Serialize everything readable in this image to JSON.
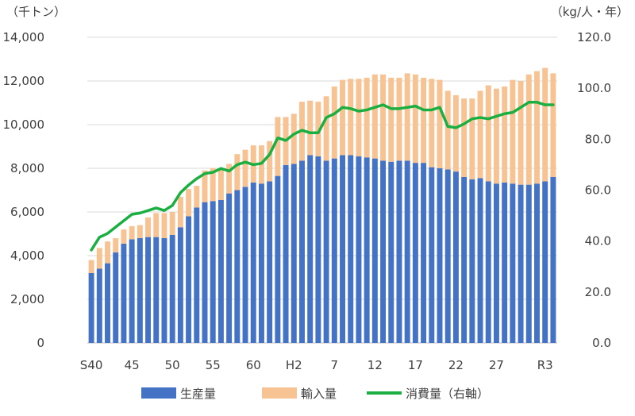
{
  "chart_data": {
    "type": "bar",
    "stacked": true,
    "title": "",
    "y_left": {
      "unit_label": "（千トン）",
      "range": [
        0,
        14000
      ],
      "ticks": [
        "0",
        "2,000",
        "4,000",
        "6,000",
        "8,000",
        "10,000",
        "12,000",
        "14,000"
      ]
    },
    "y_right": {
      "unit_label": "（kg/人・年）",
      "range": [
        0,
        120
      ],
      "ticks": [
        "0.0",
        "20.0",
        "40.0",
        "60.0",
        "80.0",
        "100.0",
        "120.0"
      ]
    },
    "x_tick_labels": [
      {
        "index": 0,
        "label": "S40"
      },
      {
        "index": 5,
        "label": "45"
      },
      {
        "index": 10,
        "label": "50"
      },
      {
        "index": 15,
        "label": "55"
      },
      {
        "index": 20,
        "label": "60"
      },
      {
        "index": 25,
        "label": "H2"
      },
      {
        "index": 30,
        "label": "7"
      },
      {
        "index": 35,
        "label": "12"
      },
      {
        "index": 40,
        "label": "17"
      },
      {
        "index": 45,
        "label": "22"
      },
      {
        "index": 50,
        "label": "27"
      },
      {
        "index": 56,
        "label": "R3"
      }
    ],
    "grid": "horizontal",
    "legend_position": "bottom",
    "series": [
      {
        "name": "生産量",
        "kind": "bar",
        "axis": "left",
        "color": "#4472C4",
        "values": [
          3200,
          3400,
          3650,
          4150,
          4550,
          4750,
          4800,
          4850,
          4850,
          4800,
          4950,
          5300,
          5800,
          6200,
          6450,
          6500,
          6550,
          6850,
          7000,
          7150,
          7350,
          7300,
          7400,
          7650,
          8150,
          8200,
          8350,
          8600,
          8550,
          8350,
          8450,
          8600,
          8600,
          8550,
          8500,
          8450,
          8350,
          8300,
          8350,
          8350,
          8250,
          8250,
          8050,
          8000,
          7950,
          7850,
          7600,
          7500,
          7550,
          7400,
          7300,
          7350,
          7300,
          7250,
          7250,
          7300,
          7400,
          7600
        ]
      },
      {
        "name": "輸入量",
        "kind": "bar",
        "axis": "left",
        "color": "#F8C393",
        "values": [
          600,
          950,
          1000,
          650,
          650,
          600,
          600,
          900,
          1100,
          1150,
          1050,
          1400,
          1250,
          1000,
          1450,
          1500,
          1450,
          1350,
          1650,
          1700,
          1700,
          1750,
          1850,
          2700,
          2200,
          2300,
          2700,
          2500,
          2500,
          2950,
          3300,
          3450,
          3500,
          3550,
          3650,
          3850,
          3950,
          3850,
          3800,
          4000,
          4050,
          3900,
          4050,
          4050,
          3600,
          3500,
          3600,
          3700,
          4000,
          4400,
          4350,
          4400,
          4750,
          4750,
          5050,
          5150,
          5200,
          4750
        ]
      },
      {
        "name": "消費量（右軸）",
        "kind": "line",
        "axis": "right",
        "color": "#1BAF41",
        "values": [
          36.5,
          41.5,
          43,
          45.5,
          48,
          50.5,
          51,
          52,
          53,
          52,
          54,
          59,
          62,
          64.5,
          66.5,
          67,
          68.5,
          67.5,
          70,
          71,
          70,
          70.5,
          74,
          80.5,
          79.5,
          82,
          83.5,
          82.5,
          82.5,
          88.5,
          90,
          92.5,
          92,
          91,
          91.5,
          92.5,
          93.5,
          92,
          92,
          92.5,
          93,
          91.5,
          91.5,
          92.5,
          85,
          84.5,
          86,
          88,
          88.5,
          88,
          89,
          90,
          90.5,
          92.5,
          94.5,
          94.5,
          93.5,
          93.5
        ]
      }
    ]
  }
}
